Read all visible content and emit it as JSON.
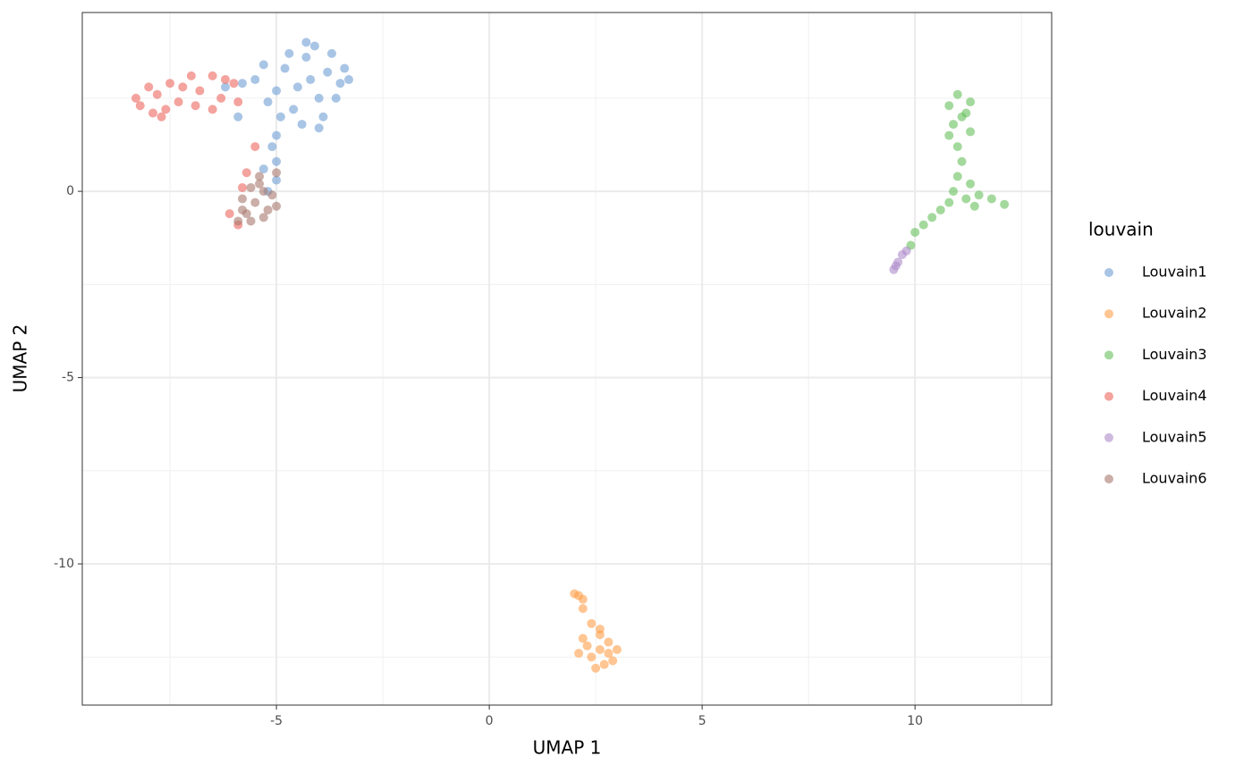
{
  "chart_data": {
    "type": "scatter",
    "x_label": "UMAP 1",
    "y_label": "UMAP 2",
    "legend_title": "louvain",
    "xlim": [
      -9.56,
      13.21
    ],
    "ylim": [
      -13.79,
      4.8
    ],
    "xticks": [
      -5,
      0,
      5,
      10
    ],
    "yticks": [
      -10,
      -5,
      0
    ],
    "x_minor_grid": [
      -7.5,
      -2.5,
      2.5,
      7.5,
      12.5
    ],
    "y_minor_grid": [
      -12.5,
      -7.5,
      -2.5,
      2.5
    ],
    "grid": true,
    "legend": "right",
    "opacity": 0.6,
    "series": [
      {
        "name": "Louvain1",
        "color": "#6f9fd3",
        "x": [
          -4.2,
          -4.5,
          -3.8,
          -4.0,
          -4.8,
          -3.5,
          -4.3,
          -5.0,
          -5.5,
          -3.4,
          -4.6,
          -3.9,
          -4.1,
          -5.2,
          -3.6,
          -4.4,
          -5.8,
          -3.3,
          -4.7,
          -3.7,
          -4.9,
          -5.3,
          -6.2,
          -4.0,
          -5.0,
          -5.1,
          -5.0,
          -5.3,
          -5.0,
          -5.2,
          -5.9,
          -4.3
        ],
        "values": [
          3.0,
          2.8,
          3.2,
          2.5,
          3.3,
          2.9,
          3.6,
          2.7,
          3.0,
          3.3,
          2.2,
          2.0,
          3.9,
          2.4,
          2.5,
          1.8,
          2.9,
          3.0,
          3.7,
          3.7,
          2.0,
          3.4,
          2.8,
          1.7,
          1.5,
          1.2,
          0.8,
          0.6,
          0.3,
          0.0,
          2.0,
          4.0
        ]
      },
      {
        "name": "Louvain2",
        "color": "#ff9e4a",
        "x": [
          2.6,
          2.4,
          2.8,
          2.3,
          2.9,
          2.5,
          2.7,
          3.0,
          2.2,
          2.6,
          2.1,
          2.8,
          2.0,
          2.1,
          2.2,
          2.2,
          2.4,
          2.6
        ],
        "values": [
          -12.3,
          -12.5,
          -12.1,
          -12.2,
          -12.6,
          -12.8,
          -12.7,
          -12.3,
          -12.0,
          -11.9,
          -12.4,
          -12.4,
          -10.8,
          -10.85,
          -10.95,
          -11.2,
          -11.6,
          -11.75
        ]
      },
      {
        "name": "Louvain3",
        "color": "#67bf5c",
        "x": [
          11.0,
          10.8,
          11.3,
          11.1,
          10.9,
          11.3,
          11.0,
          11.1,
          11.0,
          10.9,
          11.2,
          10.8,
          11.5,
          11.8,
          12.1,
          11.4,
          10.6,
          10.4,
          10.2,
          10.0,
          9.9,
          11.2,
          10.8,
          11.3
        ],
        "values": [
          2.6,
          2.3,
          2.4,
          2.0,
          1.8,
          1.6,
          1.2,
          0.8,
          0.4,
          0.0,
          -0.2,
          -0.3,
          -0.1,
          -0.2,
          -0.35,
          -0.4,
          -0.5,
          -0.7,
          -0.9,
          -1.1,
          -1.45,
          2.1,
          1.5,
          0.2
        ]
      },
      {
        "name": "Louvain4",
        "color": "#ed665d",
        "x": [
          -8.2,
          -7.8,
          -7.5,
          -7.0,
          -6.5,
          -7.9,
          -7.3,
          -6.8,
          -8.0,
          -6.2,
          -6.9,
          -7.6,
          -6.3,
          -5.9,
          -8.3,
          -7.2,
          -6.0,
          -7.7,
          -5.5,
          -5.7,
          -5.8,
          -6.1,
          -5.9,
          -6.5
        ],
        "values": [
          2.3,
          2.6,
          2.9,
          3.1,
          3.1,
          2.1,
          2.4,
          2.7,
          2.8,
          3.0,
          2.3,
          2.2,
          2.5,
          2.4,
          2.5,
          2.8,
          2.9,
          2.0,
          1.2,
          0.5,
          0.1,
          -0.6,
          -0.9,
          2.2
        ]
      },
      {
        "name": "Louvain5",
        "color": "#ad8bc9",
        "x": [
          9.5,
          9.6,
          9.7,
          9.8,
          9.55
        ],
        "values": [
          -2.1,
          -1.9,
          -1.7,
          -1.6,
          -2.0
        ]
      },
      {
        "name": "Louvain6",
        "color": "#a8786e",
        "x": [
          -5.5,
          -5.7,
          -5.3,
          -5.6,
          -5.2,
          -5.8,
          -5.4,
          -5.9,
          -5.1,
          -5.6,
          -5.0,
          -5.3,
          -5.8,
          -5.4,
          -5.0
        ],
        "values": [
          -0.3,
          -0.6,
          0.0,
          0.1,
          -0.5,
          -0.2,
          0.4,
          -0.8,
          -0.1,
          -0.8,
          0.5,
          -0.7,
          -0.5,
          0.2,
          -0.4
        ]
      }
    ]
  }
}
